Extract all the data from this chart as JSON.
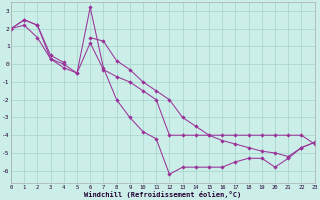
{
  "xlabel": "Windchill (Refroidissement éolien,°C)",
  "background_color": "#cceee8",
  "grid_color": "#aad8d0",
  "line_color": "#993399",
  "x_ticks": [
    0,
    1,
    2,
    3,
    4,
    5,
    6,
    7,
    8,
    9,
    10,
    11,
    12,
    13,
    14,
    15,
    16,
    17,
    18,
    19,
    20,
    21,
    22,
    23
  ],
  "y_ticks": [
    -6,
    -5,
    -4,
    -3,
    -2,
    -1,
    0,
    1,
    2,
    3
  ],
  "xlim": [
    0,
    23
  ],
  "ylim": [
    -6.7,
    3.5
  ],
  "series1_x": [
    0,
    1,
    2,
    3,
    4,
    5,
    6,
    7,
    8,
    9,
    10,
    11,
    12,
    13,
    14,
    15,
    16,
    17,
    18,
    19,
    20,
    21,
    22,
    23
  ],
  "series1_y": [
    2.0,
    2.5,
    2.2,
    0.5,
    0.1,
    null,
    1.5,
    1.3,
    0.2,
    -0.3,
    -1.0,
    -1.5,
    -2.0,
    -3.0,
    -3.5,
    -4.0,
    -4.3,
    -4.5,
    -4.7,
    -4.9,
    -5.0,
    -5.2,
    -4.7,
    -4.4
  ],
  "series2_x": [
    0,
    1,
    2,
    3,
    4,
    5,
    6,
    7,
    8,
    9,
    10,
    11,
    12,
    13,
    14,
    15,
    16,
    17,
    18,
    19,
    20,
    21,
    22,
    23
  ],
  "series2_y": [
    2.0,
    2.5,
    2.2,
    0.3,
    0.0,
    -0.5,
    3.2,
    -0.2,
    -2.0,
    -3.0,
    -3.8,
    -4.2,
    -6.2,
    -5.8,
    -5.8,
    -5.8,
    -5.8,
    -5.5,
    -5.3,
    -5.3,
    -5.8,
    -5.3,
    -4.7,
    -4.4
  ],
  "series3_x": [
    0,
    1,
    2,
    3,
    4,
    5,
    6,
    7,
    8,
    9,
    10,
    11,
    12,
    13,
    14,
    15,
    16,
    17,
    18,
    19,
    20,
    21,
    22,
    23
  ],
  "series3_y": [
    2.0,
    2.2,
    1.5,
    0.3,
    -0.2,
    -0.5,
    1.2,
    -0.3,
    -0.7,
    -1.0,
    -1.5,
    -2.0,
    -4.0,
    -4.0,
    -4.0,
    -4.0,
    -4.0,
    -4.0,
    -4.0,
    -4.0,
    -4.0,
    -4.0,
    -4.0,
    -4.5
  ]
}
